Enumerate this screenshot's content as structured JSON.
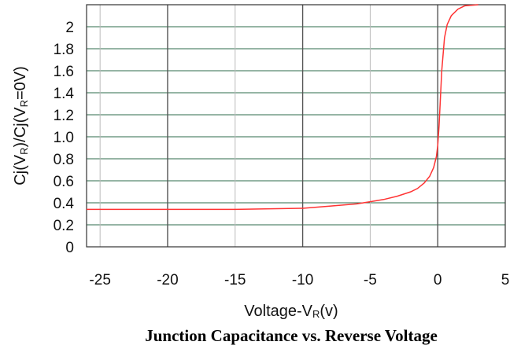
{
  "chart_data": {
    "type": "line",
    "caption": "Junction Capacitance vs. Reverse Voltage",
    "xlabel": {
      "main": "Voltage-V",
      "sub": "R",
      "tail": "(v)"
    },
    "ylabel": {
      "p1": "Cj(V",
      "s1": "R",
      "p2": ")/Cj(V",
      "s2": "R",
      "p3": "=0V)"
    },
    "xlim": [
      -26,
      5
    ],
    "ylim": [
      0,
      2.2
    ],
    "xticks": [
      {
        "v": -25,
        "label": "-25"
      },
      {
        "v": -20,
        "label": "-20"
      },
      {
        "v": -15,
        "label": "-15"
      },
      {
        "v": -10,
        "label": "-10"
      },
      {
        "v": -5,
        "label": "-5"
      },
      {
        "v": 0,
        "label": "0"
      },
      {
        "v": 5,
        "label": "5"
      }
    ],
    "yticks": [
      {
        "v": 0,
        "label": "0"
      },
      {
        "v": 0.2,
        "label": "0.2"
      },
      {
        "v": 0.4,
        "label": "0.4"
      },
      {
        "v": 0.6,
        "label": "0.6"
      },
      {
        "v": 0.8,
        "label": "0.8"
      },
      {
        "v": 1.0,
        "label": "1.0"
      },
      {
        "v": 1.2,
        "label": "1.2"
      },
      {
        "v": 1.4,
        "label": "1.4"
      },
      {
        "v": 1.6,
        "label": "1.6"
      },
      {
        "v": 1.8,
        "label": "1.8"
      },
      {
        "v": 2.0,
        "label": "2"
      }
    ],
    "grid": true,
    "colors": {
      "line": "#ff3333",
      "grid_h": "#2e6b4b",
      "grid_v_major": "#555555",
      "grid_v_minor": "#bbbbbb"
    },
    "series": [
      {
        "x": [
          -26,
          -20,
          -15,
          -10,
          -8,
          -6,
          -5,
          -4,
          -3,
          -2,
          -1.5,
          -1,
          -0.6,
          -0.3,
          -0.1,
          0,
          0.1,
          0.2,
          0.3,
          0.5,
          0.7,
          1.0,
          1.5,
          2.0,
          3.0
        ],
        "y": [
          0.34,
          0.34,
          0.34,
          0.35,
          0.37,
          0.39,
          0.41,
          0.43,
          0.46,
          0.5,
          0.53,
          0.58,
          0.64,
          0.72,
          0.82,
          0.92,
          1.1,
          1.35,
          1.6,
          1.9,
          2.02,
          2.1,
          2.16,
          2.19,
          2.2
        ]
      }
    ]
  }
}
